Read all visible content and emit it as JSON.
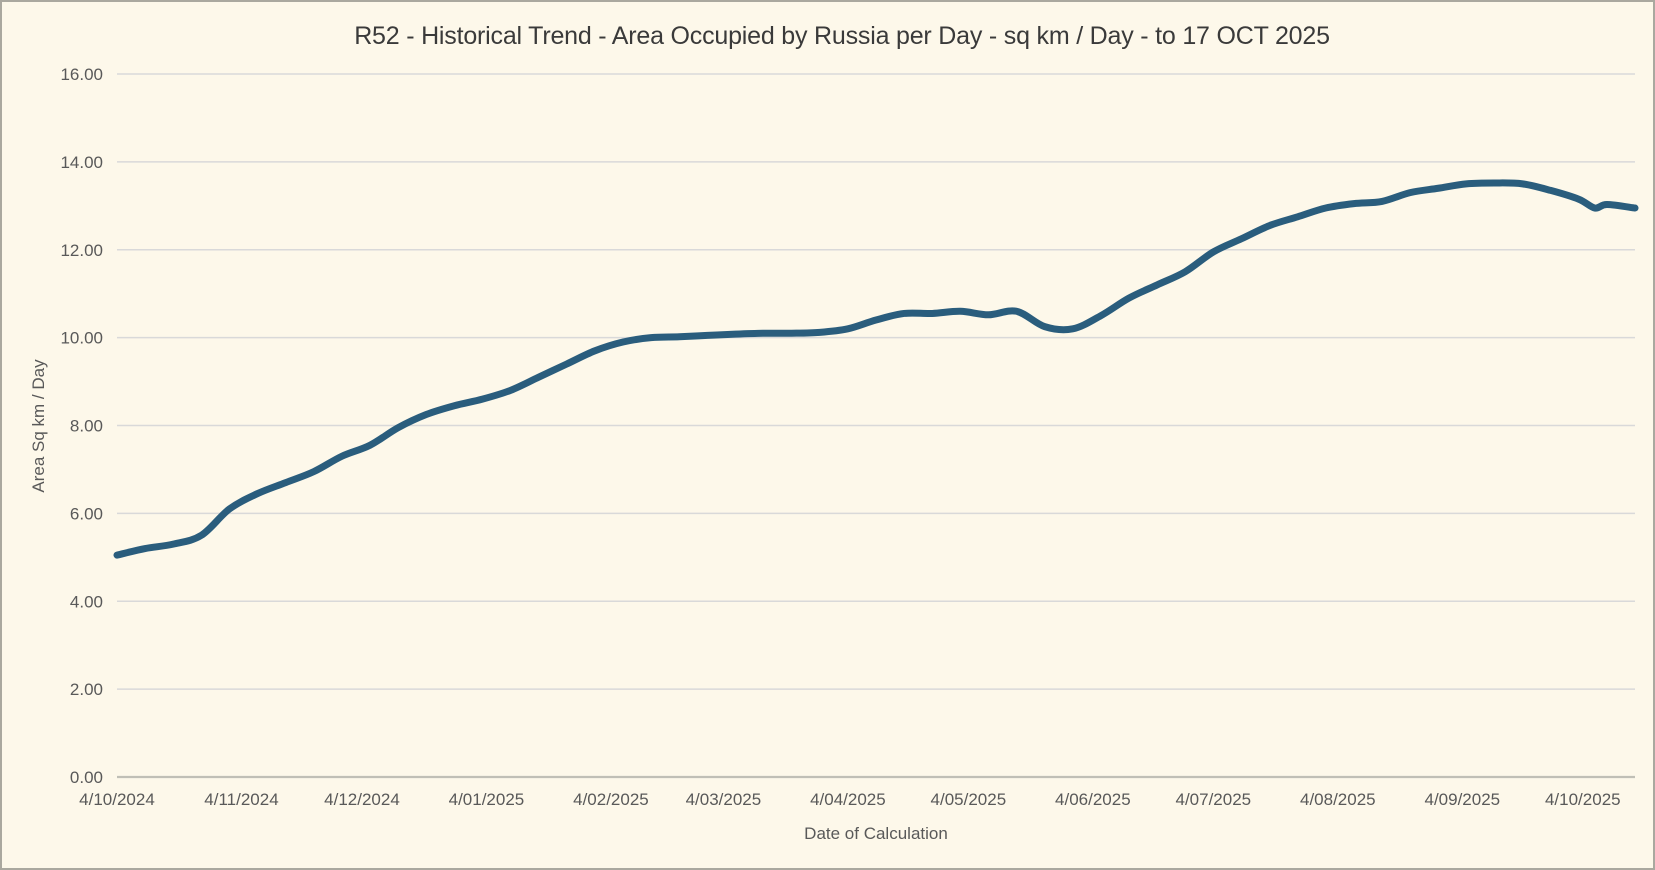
{
  "chart_data": {
    "type": "line",
    "title": "R52 - Historical Trend - Area Occupied by Russia per Day - sq km / Day - to 17 OCT 2025",
    "xlabel": "Date of Calculation",
    "ylabel": "Area Sq km / Day",
    "ylim": [
      0,
      16
    ],
    "grid": true,
    "legend_position": "none",
    "yticks": [
      "0.00",
      "2.00",
      "4.00",
      "6.00",
      "8.00",
      "10.00",
      "12.00",
      "14.00",
      "16.00"
    ],
    "xticks": [
      "4/10/2024",
      "4/11/2024",
      "4/12/2024",
      "4/01/2025",
      "4/02/2025",
      "4/03/2025",
      "4/04/2025",
      "4/05/2025",
      "4/06/2025",
      "4/07/2025",
      "4/08/2025",
      "4/09/2025",
      "4/10/2025"
    ],
    "date_format": "d/mm/yyyy",
    "series": [
      {
        "name": "Area Occupied by Russia per Day (sq km / Day)",
        "dates": [
          "4/10/2024",
          "11/10/2024",
          "18/10/2024",
          "25/10/2024",
          "1/11/2024",
          "8/11/2024",
          "15/11/2024",
          "22/11/2024",
          "29/11/2024",
          "6/12/2024",
          "13/12/2024",
          "20/12/2024",
          "27/12/2024",
          "3/1/2025",
          "10/1/2025",
          "17/1/2025",
          "24/1/2025",
          "31/1/2025",
          "7/2/2025",
          "14/2/2025",
          "21/2/2025",
          "28/2/2025",
          "7/3/2025",
          "14/3/2025",
          "21/3/2025",
          "28/3/2025",
          "4/4/2025",
          "11/4/2025",
          "18/4/2025",
          "25/4/2025",
          "2/5/2025",
          "9/5/2025",
          "16/5/2025",
          "23/5/2025",
          "30/5/2025",
          "6/6/2025",
          "13/6/2025",
          "20/6/2025",
          "27/6/2025",
          "4/7/2025",
          "11/7/2025",
          "18/7/2025",
          "25/7/2025",
          "1/8/2025",
          "8/8/2025",
          "15/8/2025",
          "22/8/2025",
          "29/8/2025",
          "5/9/2025",
          "12/9/2025",
          "19/9/2025",
          "26/9/2025",
          "3/10/2025",
          "7/10/2025",
          "10/10/2025",
          "17/10/2025"
        ],
        "values": [
          5.05,
          5.2,
          5.3,
          5.5,
          6.1,
          6.45,
          6.7,
          6.95,
          7.3,
          7.55,
          7.95,
          8.25,
          8.45,
          8.6,
          8.8,
          9.1,
          9.4,
          9.7,
          9.9,
          10.0,
          10.02,
          10.05,
          10.08,
          10.1,
          10.1,
          10.12,
          10.2,
          10.4,
          10.55,
          10.55,
          10.6,
          10.52,
          10.6,
          10.25,
          10.2,
          10.5,
          10.9,
          11.2,
          11.5,
          11.95,
          12.25,
          12.55,
          12.75,
          12.95,
          13.05,
          13.1,
          13.3,
          13.4,
          13.5,
          13.52,
          13.5,
          13.35,
          13.15,
          12.95,
          13.03,
          12.95
        ]
      }
    ],
    "colors": {
      "line": "#2a5d7d",
      "background": "#fdf8ea",
      "grid": "#d9d9d9",
      "axis": "#c0bfb6",
      "frame": "#aaa89f",
      "title_text": "#3a3a3a",
      "tick_text": "#595959"
    }
  }
}
